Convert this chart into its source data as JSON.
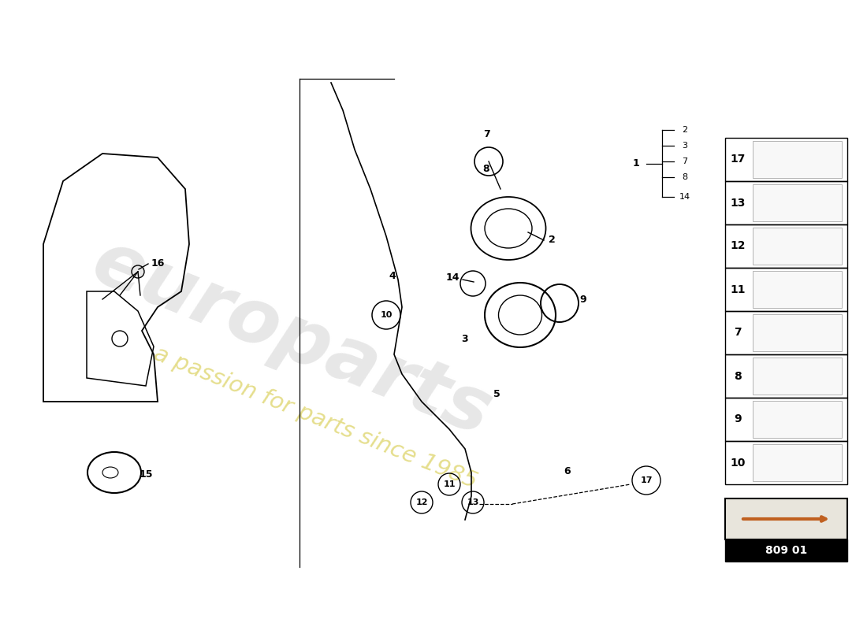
{
  "bg_color": "#ffffff",
  "watermark1": "europarts",
  "watermark2": "a passion for parts since 1985",
  "part_code": "809 01",
  "sidebar_items": [
    "17",
    "13",
    "12",
    "11",
    "7",
    "8",
    "9",
    "10"
  ],
  "callout_nums": [
    "2",
    "3",
    "7",
    "8",
    "14"
  ],
  "callout_label": "1"
}
